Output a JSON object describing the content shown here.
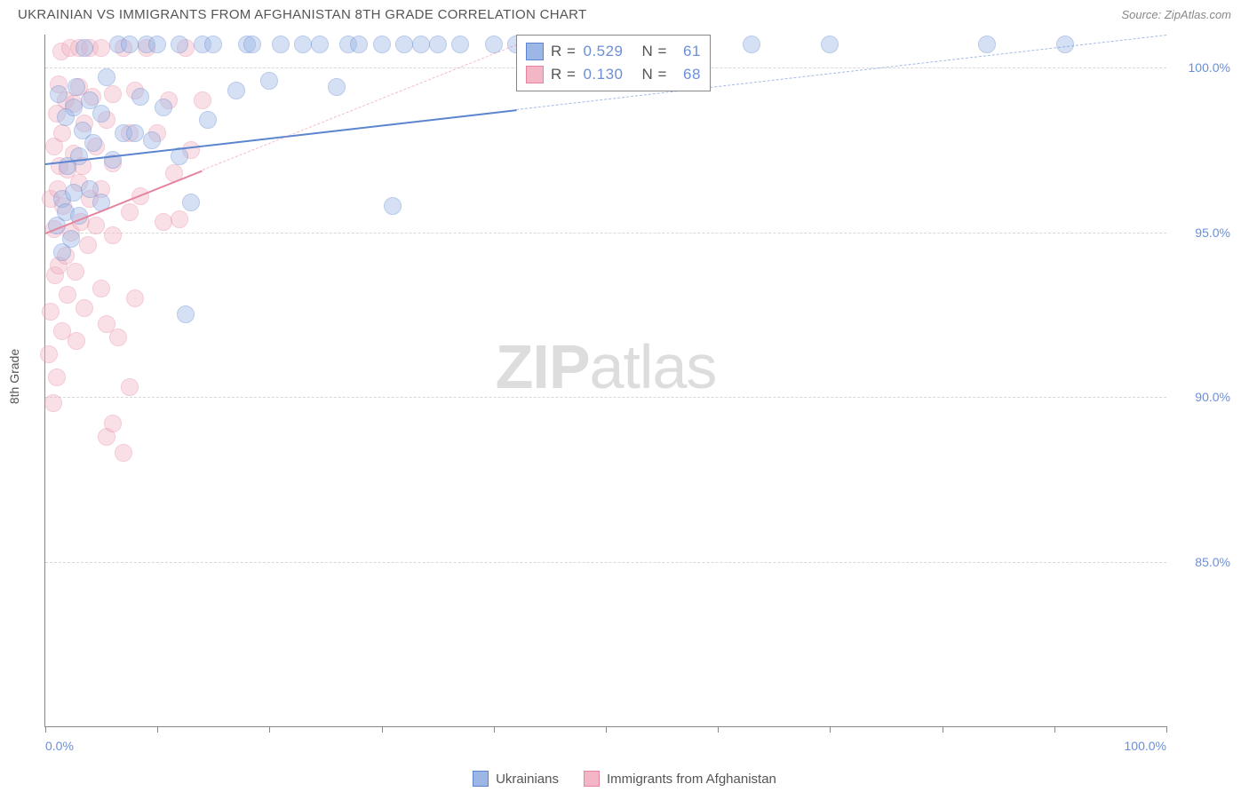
{
  "title": "UKRAINIAN VS IMMIGRANTS FROM AFGHANISTAN 8TH GRADE CORRELATION CHART",
  "source_label": "Source: ZipAtlas.com",
  "watermark": {
    "bold": "ZIP",
    "light": "atlas"
  },
  "yaxis_label": "8th Grade",
  "chart": {
    "type": "scatter",
    "xlim": [
      0,
      100
    ],
    "ylim": [
      80,
      101
    ],
    "plot_background": "#ffffff",
    "grid_color": "#d8d8d8",
    "axis_color": "#888888",
    "label_color": "#6b8fd6",
    "label_fontsize": 14,
    "title_fontsize": 15,
    "title_color": "#555555",
    "marker_radius": 10,
    "marker_opacity": 0.42,
    "y_gridlines": [
      85.0,
      90.0,
      95.0,
      100.0
    ],
    "y_tick_labels": [
      "85.0%",
      "90.0%",
      "95.0%",
      "100.0%"
    ],
    "x_ticks": [
      0,
      10,
      20,
      30,
      40,
      50,
      60,
      70,
      80,
      90,
      100
    ],
    "x_tick_labels_shown": [
      {
        "pos": 0,
        "text": "0.0%"
      },
      {
        "pos": 100,
        "text": "100.0%"
      }
    ]
  },
  "series": [
    {
      "name": "Ukrainians",
      "fill": "#9cb7e6",
      "stroke": "#5b85cf",
      "R": "0.529",
      "N": "61",
      "trend": {
        "x1": 0,
        "y1": 97.1,
        "x2": 100,
        "y2": 101,
        "solid_until_x": 42
      },
      "points": [
        [
          1.0,
          95.2
        ],
        [
          1.2,
          99.2
        ],
        [
          1.5,
          94.4
        ],
        [
          1.5,
          96.0
        ],
        [
          1.8,
          95.6
        ],
        [
          1.8,
          98.5
        ],
        [
          2.0,
          97.0
        ],
        [
          2.3,
          94.8
        ],
        [
          2.5,
          96.2
        ],
        [
          2.5,
          98.8
        ],
        [
          2.8,
          99.4
        ],
        [
          3.0,
          95.5
        ],
        [
          3.0,
          97.3
        ],
        [
          3.3,
          98.1
        ],
        [
          3.5,
          100.6
        ],
        [
          4.0,
          96.3
        ],
        [
          4.0,
          99.0
        ],
        [
          4.3,
          97.7
        ],
        [
          5.0,
          98.6
        ],
        [
          5.0,
          95.9
        ],
        [
          5.5,
          99.7
        ],
        [
          6.0,
          97.2
        ],
        [
          6.5,
          100.7
        ],
        [
          7.0,
          98.0
        ],
        [
          7.5,
          100.7
        ],
        [
          8.0,
          98.0
        ],
        [
          8.5,
          99.1
        ],
        [
          9.0,
          100.7
        ],
        [
          9.5,
          97.8
        ],
        [
          10.0,
          100.7
        ],
        [
          10.5,
          98.8
        ],
        [
          12.0,
          97.3
        ],
        [
          12.0,
          100.7
        ],
        [
          12.5,
          92.5
        ],
        [
          13.0,
          95.9
        ],
        [
          14.0,
          100.7
        ],
        [
          14.5,
          98.4
        ],
        [
          15.0,
          100.7
        ],
        [
          17.0,
          99.3
        ],
        [
          18.0,
          100.7
        ],
        [
          18.5,
          100.7
        ],
        [
          20.0,
          99.6
        ],
        [
          21.0,
          100.7
        ],
        [
          23.0,
          100.7
        ],
        [
          24.5,
          100.7
        ],
        [
          26.0,
          99.4
        ],
        [
          27.0,
          100.7
        ],
        [
          28.0,
          100.7
        ],
        [
          30.0,
          100.7
        ],
        [
          31.0,
          95.8
        ],
        [
          32.0,
          100.7
        ],
        [
          33.5,
          100.7
        ],
        [
          35.0,
          100.7
        ],
        [
          37.0,
          100.7
        ],
        [
          40.0,
          100.7
        ],
        [
          42.0,
          100.7
        ],
        [
          53.0,
          100.7
        ],
        [
          63.0,
          100.7
        ],
        [
          70.0,
          100.7
        ],
        [
          84.0,
          100.7
        ],
        [
          91.0,
          100.7
        ]
      ]
    },
    {
      "name": "Immigrants from Afghanistan",
      "fill": "#f2b6c6",
      "stroke": "#e684a0",
      "R": "0.130",
      "N": "68",
      "trend": {
        "x1": 0,
        "y1": 95.0,
        "x2": 42,
        "y2": 100.7,
        "solid_until_x": 14
      },
      "points": [
        [
          0.3,
          91.3
        ],
        [
          0.5,
          96.0
        ],
        [
          0.5,
          92.6
        ],
        [
          0.7,
          89.8
        ],
        [
          0.8,
          95.1
        ],
        [
          0.8,
          97.6
        ],
        [
          0.9,
          93.7
        ],
        [
          1.0,
          98.6
        ],
        [
          1.0,
          90.6
        ],
        [
          1.1,
          96.3
        ],
        [
          1.2,
          99.5
        ],
        [
          1.2,
          94.0
        ],
        [
          1.3,
          97.0
        ],
        [
          1.4,
          100.5
        ],
        [
          1.5,
          92.0
        ],
        [
          1.5,
          98.0
        ],
        [
          1.6,
          95.8
        ],
        [
          1.8,
          94.3
        ],
        [
          1.8,
          99.0
        ],
        [
          2.0,
          96.9
        ],
        [
          2.0,
          93.1
        ],
        [
          2.2,
          100.6
        ],
        [
          2.3,
          95.0
        ],
        [
          2.5,
          97.4
        ],
        [
          2.5,
          98.9
        ],
        [
          2.7,
          93.8
        ],
        [
          2.8,
          91.7
        ],
        [
          3.0,
          96.5
        ],
        [
          3.0,
          99.4
        ],
        [
          3.0,
          100.6
        ],
        [
          3.2,
          95.3
        ],
        [
          3.3,
          97.0
        ],
        [
          3.5,
          92.7
        ],
        [
          3.5,
          98.3
        ],
        [
          3.8,
          94.6
        ],
        [
          4.0,
          100.6
        ],
        [
          4.0,
          96.0
        ],
        [
          4.2,
          99.1
        ],
        [
          4.5,
          95.2
        ],
        [
          4.5,
          97.6
        ],
        [
          5.0,
          100.6
        ],
        [
          5.0,
          93.3
        ],
        [
          5.0,
          96.3
        ],
        [
          5.5,
          98.4
        ],
        [
          5.5,
          92.2
        ],
        [
          5.5,
          88.8
        ],
        [
          6.0,
          94.9
        ],
        [
          6.0,
          97.1
        ],
        [
          6.0,
          99.2
        ],
        [
          6.0,
          89.2
        ],
        [
          6.5,
          91.8
        ],
        [
          7.0,
          100.6
        ],
        [
          7.0,
          88.3
        ],
        [
          7.5,
          95.6
        ],
        [
          7.5,
          98.0
        ],
        [
          7.5,
          90.3
        ],
        [
          8.0,
          93.0
        ],
        [
          8.0,
          99.3
        ],
        [
          8.5,
          96.1
        ],
        [
          9.0,
          100.6
        ],
        [
          10.0,
          98.0
        ],
        [
          10.5,
          95.3
        ],
        [
          11.0,
          99.0
        ],
        [
          11.5,
          96.8
        ],
        [
          12.0,
          95.4
        ],
        [
          12.5,
          100.6
        ],
        [
          13.0,
          97.5
        ],
        [
          14.0,
          99.0
        ]
      ]
    }
  ],
  "stat_box": {
    "rows": [
      {
        "series_idx": 0,
        "r_label": "R =",
        "n_label": "N ="
      },
      {
        "series_idx": 1,
        "r_label": "R =",
        "n_label": "N ="
      }
    ]
  },
  "bottom_legend": [
    {
      "series_idx": 0
    },
    {
      "series_idx": 1
    }
  ]
}
